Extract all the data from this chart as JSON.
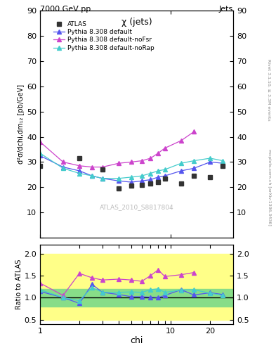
{
  "title_top": "7000 GeV pp",
  "title_right": "Jets",
  "main_title": "χ (jets)",
  "watermark": "ATLAS_2010_S8817804",
  "right_label": "mcplots.cern.ch [arXiv:1306.3436]",
  "right_label2": "Rivet 3.1.10, ≥ 3.3M events",
  "ylabel_main": "d²σ/dchi,dm₁₂ [pb/GeV]",
  "ylabel_ratio": "Ratio to ATLAS",
  "xlabel": "chi",
  "ylim_main": [
    0,
    90
  ],
  "ylim_ratio": [
    0.4,
    2.2
  ],
  "yticks_main": [
    0,
    10,
    20,
    30,
    40,
    50,
    60,
    70,
    80,
    90
  ],
  "yticks_ratio": [
    0.5,
    1.0,
    1.5,
    2.0
  ],
  "xlim": [
    1,
    30
  ],
  "chi_x": [
    1.0,
    1.5,
    2.0,
    2.5,
    3.0,
    4.0,
    5.0,
    6.0,
    7.0,
    8.0,
    9.0,
    12.0,
    15.0,
    20.0,
    25.0
  ],
  "atlas_y": [
    28.5,
    null,
    31.5,
    null,
    27.0,
    19.5,
    20.5,
    21.0,
    21.5,
    22.0,
    23.5,
    21.5,
    24.5,
    24.0,
    28.5
  ],
  "atlas_x": [
    1.0,
    null,
    2.0,
    null,
    3.0,
    4.0,
    5.0,
    6.0,
    7.0,
    8.0,
    9.0,
    12.0,
    15.0,
    20.0,
    25.0
  ],
  "pythia_default_x": [
    1.0,
    1.5,
    2.0,
    2.5,
    3.0,
    4.0,
    5.0,
    6.0,
    7.0,
    8.0,
    9.0,
    12.0,
    15.0,
    20.0,
    25.0
  ],
  "pythia_default_y": [
    32.5,
    28.0,
    26.5,
    24.5,
    23.5,
    22.5,
    22.0,
    22.5,
    23.0,
    24.0,
    24.5,
    26.5,
    27.5,
    30.0,
    29.5
  ],
  "pythia_noFsr_y": [
    38.0,
    30.0,
    28.5,
    28.0,
    28.0,
    29.5,
    30.0,
    30.5,
    31.5,
    33.5,
    35.5,
    38.5,
    42.0,
    null,
    null
  ],
  "pythia_noRap_y": [
    33.5,
    27.5,
    25.5,
    24.5,
    23.5,
    23.5,
    24.0,
    24.5,
    25.5,
    26.5,
    27.0,
    29.5,
    30.5,
    31.5,
    30.5
  ],
  "ratio_default_x": [
    1.0,
    1.5,
    2.0,
    2.5,
    3.0,
    4.0,
    5.0,
    6.0,
    7.0,
    8.0,
    9.0,
    12.0,
    15.0,
    20.0,
    25.0
  ],
  "ratio_default": [
    1.14,
    1.0,
    0.87,
    1.3,
    1.12,
    1.07,
    1.02,
    1.02,
    1.01,
    1.0,
    1.05,
    1.18,
    1.06,
    1.11,
    1.07
  ],
  "ratio_noFsr_x": [
    1.0,
    1.5,
    2.0,
    2.5,
    3.0,
    4.0,
    5.0,
    6.0,
    7.0,
    8.0,
    9.0,
    12.0,
    15.0
  ],
  "ratio_noFsr": [
    1.33,
    1.05,
    1.55,
    1.45,
    1.4,
    1.42,
    1.4,
    1.37,
    1.5,
    1.63,
    1.48,
    1.52,
    1.57
  ],
  "ratio_noRap_x": [
    1.0,
    1.5,
    2.0,
    2.5,
    3.0,
    4.0,
    5.0,
    6.0,
    7.0,
    8.0,
    9.0,
    12.0,
    15.0,
    20.0,
    25.0
  ],
  "ratio_noRap": [
    1.18,
    1.0,
    0.93,
    1.23,
    1.12,
    1.12,
    1.13,
    1.12,
    1.18,
    1.2,
    1.12,
    1.17,
    1.18,
    1.1,
    1.05
  ],
  "color_atlas": "#333333",
  "color_default": "#5555ee",
  "color_noFsr": "#cc44cc",
  "color_noRap": "#44cccc",
  "green_inner": [
    0.8,
    1.2
  ],
  "yellow_outer": [
    0.5,
    2.0
  ],
  "legend_labels": [
    "ATLAS",
    "Pythia 8.308 default",
    "Pythia 8.308 default-noFsr",
    "Pythia 8.308 default-noRap"
  ]
}
